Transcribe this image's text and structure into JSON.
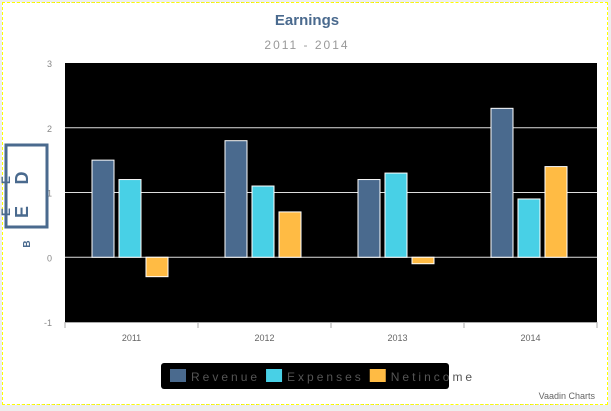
{
  "chart_data": {
    "type": "bar",
    "title": "Earnings",
    "subtitle": "2011 - 2014",
    "ylabel_glyphs": [
      "D",
      "E",
      "E",
      "E",
      "B"
    ],
    "categories": [
      "2011",
      "2012",
      "2013",
      "2014"
    ],
    "series": [
      {
        "name": "Revenue",
        "color": "#4a6a8e",
        "values": [
          1.5,
          1.8,
          1.2,
          2.3
        ]
      },
      {
        "name": "Expenses",
        "color": "#48d0e6",
        "values": [
          1.2,
          1.1,
          1.3,
          0.9
        ]
      },
      {
        "name": "Netincome",
        "color": "#ffbb44",
        "values": [
          -0.3,
          0.7,
          -0.1,
          1.4
        ]
      }
    ],
    "ylim": [
      -1,
      3
    ],
    "yticks": [
      "-1",
      "0",
      "1",
      "2",
      "3"
    ],
    "legend": "bottom-center",
    "credits": "Vaadin Charts"
  }
}
